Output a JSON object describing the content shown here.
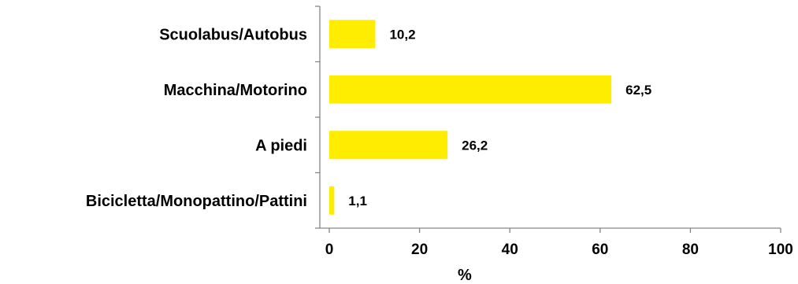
{
  "chart_data": {
    "type": "bar",
    "orientation": "horizontal",
    "categories": [
      "Scuolabus/Autobus",
      "Macchina/Motorino",
      "A piedi ",
      "Bicicletta/Monopattino/Pattini"
    ],
    "values": [
      10.2,
      62.5,
      26.2,
      1.1
    ],
    "value_labels": [
      "10,2",
      "62,5",
      "26,2",
      "1,1"
    ],
    "xlabel": "%",
    "ylabel": "",
    "xlim": [
      0,
      100
    ],
    "xticks": [
      0,
      20,
      40,
      60,
      80,
      100
    ],
    "bar_color": "#FFED00",
    "grid": false,
    "legend": "none"
  }
}
